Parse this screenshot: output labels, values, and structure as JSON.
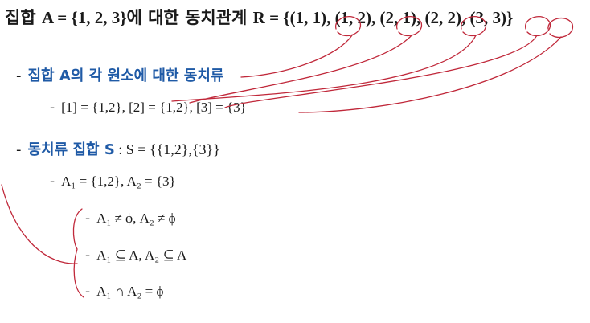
{
  "title": {
    "prefix": "집합 ",
    "set_a": "A = {1, 2, 3}",
    "mid": "에 대한 동치관계 ",
    "relation": "R = {(1, 1), (1, 2), (2, 1), (2, 2), (3, 3)}"
  },
  "bullet_dash": "-",
  "item1": {
    "label": "집합 A의 각 원소에 대한 동치류"
  },
  "item1_sub": {
    "text": "[1] = {1,2}, [2] = {1,2}, [3] = {3}"
  },
  "item2": {
    "label": "동치류 집합 S",
    "math": " : S = {{1,2},{3}}"
  },
  "item2_sub": {
    "text": "A₁ = {1,2}, A₂ = {3}"
  },
  "conditions": [
    {
      "text": "A₁ ≠ ϕ, A₂ ≠ ϕ"
    },
    {
      "text": "A₁ ⊆ A, A₂ ⊆ A"
    },
    {
      "text": "A₁ ∩ A₂ = ϕ"
    }
  ],
  "ink_color": "#c0283a"
}
